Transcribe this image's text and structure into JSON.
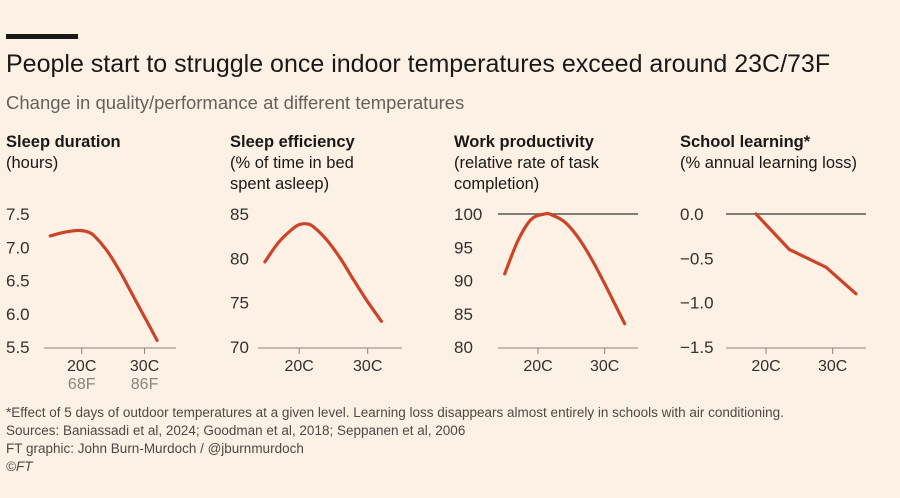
{
  "title": "People start to struggle once indoor temperatures exceed around 23C/73F",
  "subtitle": "Change in quality/performance at different temperatures",
  "footnotes": [
    "*Effect of 5 days of outdoor temperatures at a given level. Learning loss disappears almost entirely in schools with air conditioning.",
    "Sources: Baniassadi et al, 2024; Goodman et al, 2018; Seppanen et al, 2006",
    "FT graphic: John Burn-Murdoch / @jburnmurdoch",
    "©FT"
  ],
  "colors": {
    "line": "#cc4427",
    "axis": "#4d4845",
    "text": "#33302e",
    "background": "#fdf1e5"
  },
  "chart_data": [
    {
      "type": "line",
      "title": "Sleep duration",
      "unit": "(hours)",
      "xticks": [
        {
          "value": 20,
          "label": "20C",
          "sublabel": "68F"
        },
        {
          "value": 30,
          "label": "30C",
          "sublabel": "86F"
        }
      ],
      "xlim": [
        14,
        35
      ],
      "ylim": [
        5.5,
        7.5
      ],
      "yticks": [
        {
          "value": 7.5,
          "label": "7.5"
        },
        {
          "value": 7.0,
          "label": "7.0"
        },
        {
          "value": 6.5,
          "label": "6.5"
        },
        {
          "value": 6.0,
          "label": "6.0"
        },
        {
          "value": 5.5,
          "label": "5.5"
        }
      ],
      "reference_line": null,
      "x": [
        15,
        17,
        19,
        20,
        21,
        22,
        24,
        26,
        28,
        30,
        32
      ],
      "y": [
        7.17,
        7.22,
        7.25,
        7.25,
        7.23,
        7.17,
        6.95,
        6.65,
        6.3,
        5.95,
        5.6
      ]
    },
    {
      "type": "line",
      "title": "Sleep efficiency",
      "unit": "(% of time in bed\nspent asleep)",
      "xticks": [
        {
          "value": 20,
          "label": "20C"
        },
        {
          "value": 30,
          "label": "30C"
        }
      ],
      "xlim": [
        14,
        35
      ],
      "ylim": [
        70,
        85
      ],
      "yticks": [
        {
          "value": 85,
          "label": "85"
        },
        {
          "value": 80,
          "label": "80"
        },
        {
          "value": 75,
          "label": "75"
        },
        {
          "value": 70,
          "label": "70"
        }
      ],
      "reference_line": null,
      "x": [
        15,
        17,
        19,
        20,
        21,
        22,
        24,
        26,
        28,
        30,
        32
      ],
      "y": [
        79.6,
        81.8,
        83.3,
        83.8,
        83.9,
        83.6,
        82.1,
        80.0,
        77.5,
        75.1,
        72.9
      ]
    },
    {
      "type": "line",
      "title": "Work productivity",
      "unit": "(relative rate of task\ncompletion)",
      "xticks": [
        {
          "value": 20,
          "label": "20C"
        },
        {
          "value": 30,
          "label": "30C"
        }
      ],
      "xlim": [
        14,
        35
      ],
      "ylim": [
        80,
        100
      ],
      "yticks": [
        {
          "value": 100,
          "label": "100"
        },
        {
          "value": 95,
          "label": "95"
        },
        {
          "value": 90,
          "label": "90"
        },
        {
          "value": 85,
          "label": "85"
        },
        {
          "value": 80,
          "label": "80"
        }
      ],
      "reference_line": 100,
      "x": [
        15,
        17,
        19,
        21,
        22,
        24,
        26,
        28,
        30,
        32,
        33
      ],
      "y": [
        91.0,
        96.0,
        99.2,
        100.0,
        99.9,
        98.8,
        96.5,
        93.3,
        89.5,
        85.5,
        83.5
      ]
    },
    {
      "type": "line",
      "title": "School learning*",
      "unit": "(% annual learning loss)",
      "xticks": [
        {
          "value": 20,
          "label": "20C"
        },
        {
          "value": 30,
          "label": "30C"
        }
      ],
      "xlim": [
        14,
        35
      ],
      "ylim": [
        -1.5,
        0
      ],
      "yticks": [
        {
          "value": 0,
          "label": "0.0"
        },
        {
          "value": -0.5,
          "label": "−0.5"
        },
        {
          "value": -1.0,
          "label": "−1.0"
        },
        {
          "value": -1.5,
          "label": "−1.5"
        }
      ],
      "reference_line": 0,
      "x": [
        18.5,
        23.5,
        29,
        33.5
      ],
      "y": [
        0,
        -0.4,
        -0.6,
        -0.9
      ]
    }
  ]
}
